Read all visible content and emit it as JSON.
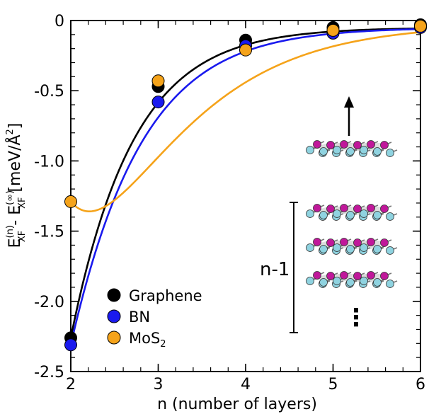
{
  "chart_data": {
    "type": "scatter",
    "title": "",
    "xlabel": "n (number of layers)",
    "ylabel": {
      "main": "E",
      "sub": "XF",
      "sup1": "(n)",
      "sep": " - E",
      "sup2": "(∞)",
      "unit_open": " [meV/Å",
      "unit_sup": "2",
      "unit_close": "]"
    },
    "xlim": [
      2,
      6
    ],
    "ylim": [
      -2.5,
      0
    ],
    "xticks": [
      "2",
      "3",
      "4",
      "5",
      "6"
    ],
    "yticks": [
      "0",
      "-0.5",
      "-1.0",
      "-1.5",
      "-2.0",
      "-2.5"
    ],
    "x": [
      2,
      3,
      4,
      5,
      6
    ],
    "series": [
      {
        "name": "Graphene",
        "legend_sub": "",
        "color": "#000000",
        "values": [
          -2.26,
          -0.47,
          -0.14,
          -0.05,
          -0.03
        ],
        "fit": [
          -0.05,
          3.6,
          1.55
        ]
      },
      {
        "name": "BN",
        "legend_sub": "",
        "color": "#1a1aee",
        "values": [
          -2.31,
          -0.58,
          -0.18,
          -0.09,
          -0.05
        ],
        "fit": [
          -0.05,
          3.6,
          1.43
        ]
      },
      {
        "name": "MoS",
        "legend_sub": "2",
        "color": "#f5a31a",
        "values": [
          -1.29,
          -0.43,
          -0.21,
          -0.07,
          -0.04
        ],
        "fit": [
          -0.025,
          4.0,
          1.05
        ]
      }
    ],
    "legend_position": "bottom-left",
    "annotation": {
      "label": "n-1",
      "ellipsis": "⋮"
    }
  }
}
